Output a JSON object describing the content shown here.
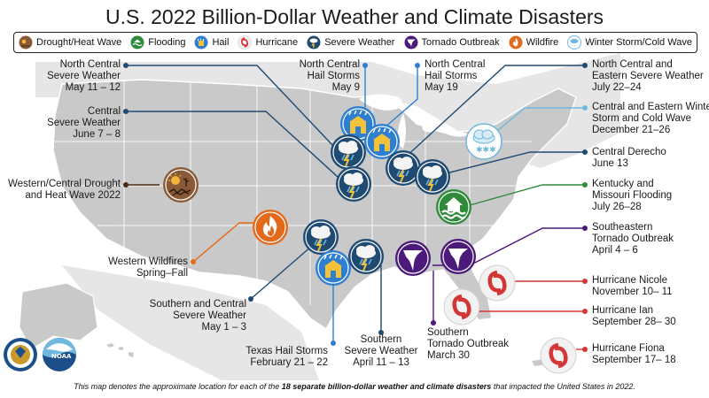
{
  "title": "U.S. 2022 Billion-Dollar Weather and Climate Disasters",
  "legend": [
    {
      "label": "Drought/Heat Wave",
      "icon": "drought-icon",
      "color": "#8a5a36"
    },
    {
      "label": "Flooding",
      "icon": "flood-icon",
      "color": "#2f8a3a"
    },
    {
      "label": "Hail",
      "icon": "hail-icon",
      "color": "#2f7fd1"
    },
    {
      "label": "Hurricane",
      "icon": "hurricane-icon",
      "color": "#d43535"
    },
    {
      "label": "Severe Weather",
      "icon": "severe-weather-icon",
      "color": "#1f4a72"
    },
    {
      "label": "Tornado Outbreak",
      "icon": "tornado-icon",
      "color": "#4b1a7a"
    },
    {
      "label": "Wildfire",
      "icon": "wildfire-icon",
      "color": "#e36a1a"
    },
    {
      "label": "Winter Storm/Cold Wave",
      "icon": "winter-storm-icon",
      "color": "#6fb8df"
    }
  ],
  "events": {
    "nc_severe": [
      "North Central",
      "Severe Weather",
      "May 11 – 12"
    ],
    "central_severe": [
      "Central",
      "Severe Weather",
      "June 7 – 8"
    ],
    "western_drought": [
      "Western/Central Drought",
      "and Heat Wave 2022"
    ],
    "western_wildfires": [
      "Western Wildfires",
      "Spring–Fall"
    ],
    "sc_severe": [
      "Southern and Central",
      "Severe Weather",
      "May 1 – 3"
    ],
    "texas_hail": [
      "Texas Hail Storms",
      "February 21 – 22"
    ],
    "southern_severe": [
      "Southern",
      "Severe Weather",
      "April 11 – 13"
    ],
    "southern_tornado": [
      "Southern",
      "Tornado Outbreak",
      "March 30"
    ],
    "nc_hail_may9": [
      "North Central",
      "Hail Storms",
      "May 9"
    ],
    "nc_hail_may19": [
      "North Central",
      "Hail Storms",
      "May 19"
    ],
    "nce_severe": [
      "North Central and",
      "Eastern Severe Weather",
      "July 22–24"
    ],
    "ce_winter": [
      "Central and Eastern Winter",
      "Storm and Cold Wave",
      "December 21–26"
    ],
    "central_derecho": [
      "Central Derecho",
      "June 13"
    ],
    "ky_mo_flood": [
      "Kentucky and",
      "Missouri Flooding",
      "July 26–28"
    ],
    "se_tornado": [
      "Southeastern",
      "Tornado Outbreak",
      "April 4 – 6"
    ],
    "nicole": [
      "Hurricane Nicole",
      "November 10– 11"
    ],
    "ian": [
      "Hurricane Ian",
      "September 28– 30"
    ],
    "fiona": [
      "Hurricane Fiona",
      "September 17– 18"
    ]
  },
  "footnote": {
    "pre": "This map denotes the approximate location for each of the ",
    "bold": "18 separate billion-dollar weather and climate disasters",
    "post": " that impacted the United States in 2022."
  },
  "logos": {
    "commerce": "commerce-seal",
    "noaa": "NOAA"
  }
}
